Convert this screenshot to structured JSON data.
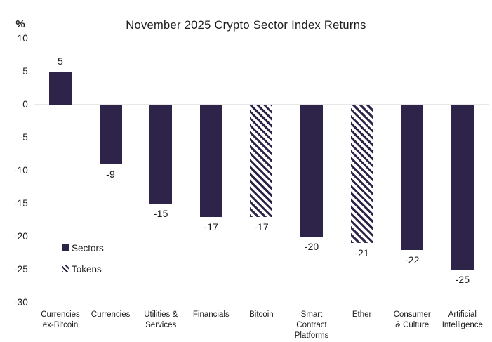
{
  "chart_data": {
    "type": "bar",
    "title": "November 2025 Crypto Sector Index Returns",
    "unit_label": "%",
    "categories": [
      "Currencies ex-Bitcoin",
      "Currencies",
      "Utilities & Services",
      "Financials",
      "Bitcoin",
      "Smart Contract Platforms",
      "Ether",
      "Consumer & Culture",
      "Artificial Intelligence"
    ],
    "x_labels": [
      "Currencies\nex-Bitcoin",
      "Currencies",
      "Utilities &\nServices",
      "Financials",
      "Bitcoin",
      "Smart\nContract\nPlatforms",
      "Ether",
      "Consumer\n& Culture",
      "Artificial\nIntelligence"
    ],
    "values": [
      5,
      -9,
      -15,
      -17,
      -17,
      -20,
      -21,
      -22,
      -25
    ],
    "data_labels": [
      "5",
      "-9",
      "-15",
      "-17",
      "-17",
      "-20",
      "-21",
      "-22",
      "-25"
    ],
    "bar_styles": [
      "solid",
      "solid",
      "solid",
      "solid",
      "hatched",
      "solid",
      "hatched",
      "solid",
      "solid"
    ],
    "y_ticks": [
      "10",
      "5",
      "0",
      "-5",
      "-10",
      "-15",
      "-20",
      "-25",
      "-30"
    ],
    "ylim": [
      -30,
      10
    ],
    "grid": "zero-line-only",
    "legend_position": "inside-left",
    "legend": [
      {
        "label": "Sectors",
        "style": "solid"
      },
      {
        "label": "Tokens",
        "style": "hatched"
      }
    ],
    "colors": {
      "bar_fill": "#2E2449",
      "zero_line": "#E8E8E8",
      "text": "#1C1C1C",
      "background": "#FFFFFF"
    }
  }
}
